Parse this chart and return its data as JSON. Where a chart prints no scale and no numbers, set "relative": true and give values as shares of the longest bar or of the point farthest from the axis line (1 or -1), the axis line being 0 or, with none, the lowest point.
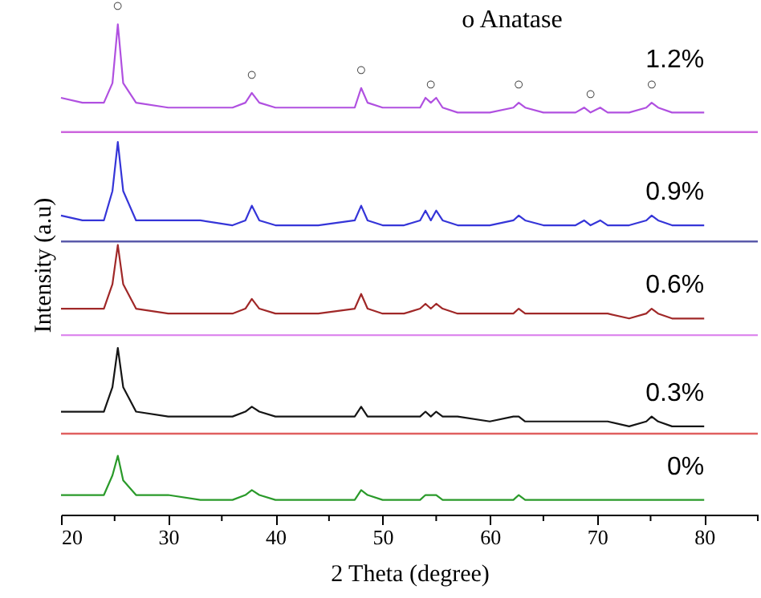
{
  "chart_data": {
    "type": "line",
    "relative": true,
    "xlabel": "2 Theta (degree)",
    "ylabel": "Intensity (a.u)",
    "xlim": [
      20,
      85
    ],
    "xticks": [
      20,
      {
        "value": 25,
        "label": null
      },
      30,
      {
        "value": 35,
        "label": null
      },
      40,
      {
        "value": 45,
        "label": null
      },
      50,
      {
        "value": 55,
        "label": null
      },
      60,
      {
        "value": 65,
        "label": null
      },
      70,
      {
        "value": 75,
        "label": null
      },
      80,
      {
        "value": 85,
        "label": null
      }
    ],
    "x": [
      20,
      22,
      24,
      24.8,
      25.3,
      25.8,
      27,
      30,
      33,
      36,
      37.2,
      37.8,
      38.5,
      40,
      44,
      47.4,
      48,
      48.6,
      50,
      52,
      53.5,
      54,
      54.5,
      55,
      55.6,
      57,
      60,
      62.2,
      62.7,
      63.3,
      65,
      68,
      68.8,
      69.4,
      70.3,
      71,
      73,
      74.6,
      75.1,
      75.7,
      77,
      80
    ],
    "series": [
      {
        "name": "1.2%",
        "color": "#b050e0",
        "values": [
          0.85,
          0.84,
          0.84,
          0.88,
          1.0,
          0.88,
          0.84,
          0.83,
          0.83,
          0.83,
          0.84,
          0.86,
          0.84,
          0.83,
          0.83,
          0.83,
          0.87,
          0.84,
          0.83,
          0.83,
          0.83,
          0.85,
          0.84,
          0.85,
          0.83,
          0.82,
          0.82,
          0.83,
          0.84,
          0.83,
          0.82,
          0.82,
          0.83,
          0.82,
          0.83,
          0.82,
          0.82,
          0.83,
          0.84,
          0.83,
          0.82,
          0.82
        ]
      },
      {
        "name": "0.9%",
        "color": "#3535d8",
        "values": [
          0.61,
          0.6,
          0.6,
          0.66,
          0.76,
          0.66,
          0.6,
          0.6,
          0.6,
          0.59,
          0.6,
          0.63,
          0.6,
          0.59,
          0.59,
          0.6,
          0.63,
          0.6,
          0.59,
          0.59,
          0.6,
          0.62,
          0.6,
          0.62,
          0.6,
          0.59,
          0.59,
          0.6,
          0.61,
          0.6,
          0.59,
          0.59,
          0.6,
          0.59,
          0.6,
          0.59,
          0.59,
          0.6,
          0.61,
          0.6,
          0.59,
          0.59
        ]
      },
      {
        "name": "0.6%",
        "color": "#a02828",
        "values": [
          0.42,
          0.42,
          0.42,
          0.47,
          0.55,
          0.47,
          0.42,
          0.41,
          0.41,
          0.41,
          0.42,
          0.44,
          0.42,
          0.41,
          0.41,
          0.42,
          0.45,
          0.42,
          0.41,
          0.41,
          0.42,
          0.43,
          0.42,
          0.43,
          0.42,
          0.41,
          0.41,
          0.41,
          0.42,
          0.41,
          0.41,
          0.41,
          0.41,
          0.41,
          0.41,
          0.41,
          0.4,
          0.41,
          0.42,
          0.41,
          0.4,
          0.4
        ]
      },
      {
        "name": "0.3%",
        "color": "#151515",
        "values": [
          0.21,
          0.21,
          0.21,
          0.26,
          0.34,
          0.26,
          0.21,
          0.2,
          0.2,
          0.2,
          0.21,
          0.22,
          0.21,
          0.2,
          0.2,
          0.2,
          0.22,
          0.2,
          0.2,
          0.2,
          0.2,
          0.21,
          0.2,
          0.21,
          0.2,
          0.2,
          0.19,
          0.2,
          0.2,
          0.19,
          0.19,
          0.19,
          0.19,
          0.19,
          0.19,
          0.19,
          0.18,
          0.19,
          0.2,
          0.19,
          0.18,
          0.18
        ]
      },
      {
        "name": "0%",
        "color": "#2a9a2a",
        "values": [
          0.04,
          0.04,
          0.04,
          0.08,
          0.12,
          0.07,
          0.04,
          0.04,
          0.03,
          0.03,
          0.04,
          0.05,
          0.04,
          0.03,
          0.03,
          0.03,
          0.05,
          0.04,
          0.03,
          0.03,
          0.03,
          0.04,
          0.04,
          0.04,
          0.03,
          0.03,
          0.03,
          0.03,
          0.04,
          0.03,
          0.03,
          0.03,
          0.03,
          0.03,
          0.03,
          0.03,
          0.03,
          0.03,
          0.03,
          0.03,
          0.03,
          0.03
        ]
      }
    ],
    "ref_lines": [
      {
        "axis": "y",
        "value": 0.78,
        "color": "#cc66dd"
      },
      {
        "axis": "y",
        "value": 0.557,
        "color": "#5a5aaa"
      },
      {
        "axis": "y",
        "value": 0.366,
        "color": "#dd88ee"
      },
      {
        "axis": "y",
        "value": 0.165,
        "color": "#e06060"
      }
    ],
    "annotations": [
      "o Anatase",
      {
        "text": "○",
        "x": 25.3,
        "y": 1.0
      },
      {
        "text": "○",
        "x": 37.8,
        "y": 0.86
      },
      {
        "text": "○",
        "x": 48,
        "y": 0.87
      },
      {
        "text": "○",
        "x": 54.5,
        "y": 0.84
      },
      {
        "text": "○",
        "x": 62.7,
        "y": 0.84
      },
      {
        "text": "○",
        "x": 69.4,
        "y": 0.82
      },
      {
        "text": "○",
        "x": 75.1,
        "y": 0.84
      }
    ],
    "grid": false,
    "line_style": "solid",
    "marker": "none"
  }
}
